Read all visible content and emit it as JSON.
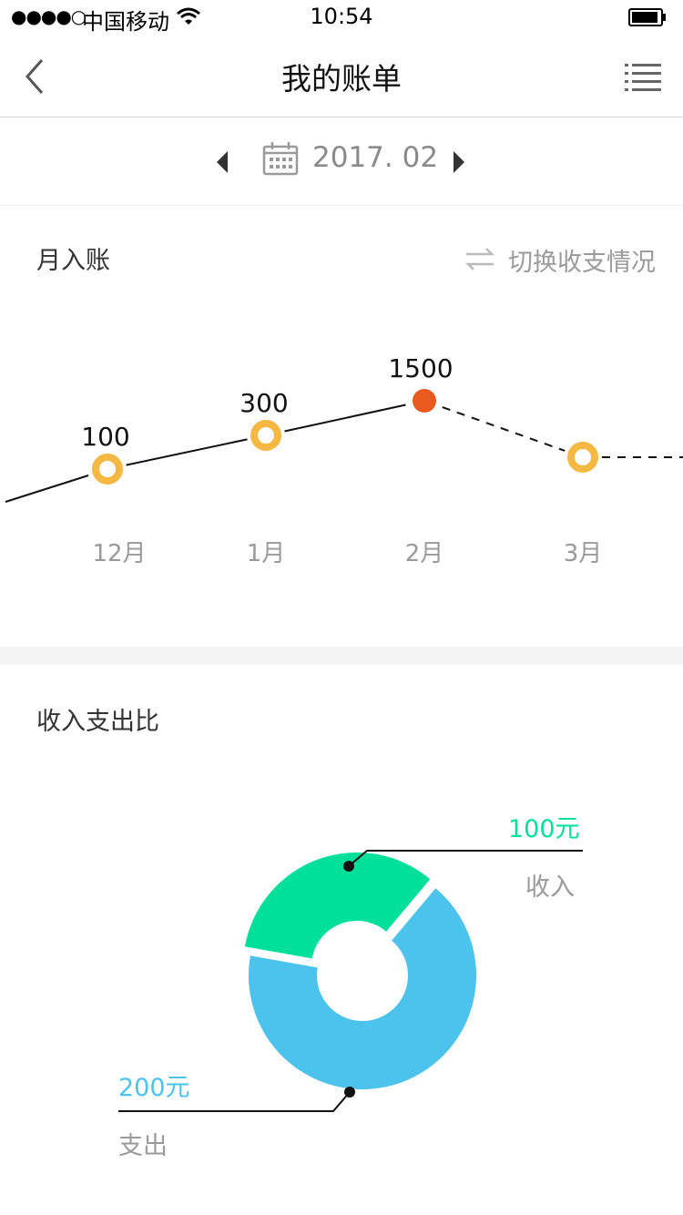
{
  "status_bar": {
    "signal": "●●●●○",
    "carrier": "中国移动",
    "time": "10:54"
  },
  "nav": {
    "title": "我的账单"
  },
  "date_selector": {
    "value": "2017. 02"
  },
  "monthly": {
    "title": "月入账",
    "switch_label": "切换收支情况"
  },
  "ratio": {
    "title": "收入支出比",
    "income_amount": "100元",
    "income_label": "收入",
    "expense_amount": "200元",
    "expense_label": "支出"
  },
  "colors": {
    "income": "#00e09a",
    "expense": "#4bc3ec",
    "ring": "#f5b843",
    "highlight": "#ea5a1e"
  },
  "chart_data": [
    {
      "type": "line",
      "categories": [
        "12月",
        "1月",
        "2月",
        "3月"
      ],
      "series": [
        {
          "values": [
            100,
            300,
            1500,
            null
          ]
        }
      ],
      "data_labels": [
        "100",
        "300",
        "1500",
        ""
      ],
      "highlighted_category": "2月",
      "grid": false
    },
    {
      "type": "pie",
      "style": "donut",
      "categories": [
        "收入",
        "支出"
      ],
      "values": [
        100,
        200
      ],
      "data_labels": [
        "100元",
        "200元"
      ]
    }
  ]
}
